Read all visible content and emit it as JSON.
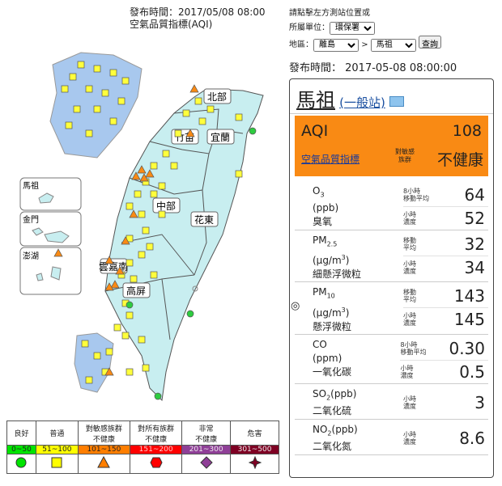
{
  "header": {
    "publish_time": "發布時間：2017/05/08 08:00",
    "title": "空氣品質指標(AQI)"
  },
  "controls": {
    "instruction": "請點擊左方測站位置或",
    "unit_label": "所屬單位：",
    "unit": "環保署",
    "region_label": "地區：",
    "region": "離島",
    "separator": ">",
    "station": "馬祖",
    "button": "查詢"
  },
  "map": {
    "regions": [
      "北部",
      "竹苗",
      "宜蘭",
      "中部",
      "花東",
      "雲嘉南",
      "高屏"
    ],
    "islands": [
      "馬祖",
      "金門",
      "澎湖"
    ]
  },
  "legend": {
    "levels": [
      {
        "label": [
          "良好"
        ],
        "range": "0~50"
      },
      {
        "label": [
          "普通"
        ],
        "range": "51~100"
      },
      {
        "label": [
          "對敏感族群",
          "不健康"
        ],
        "range": "101~150"
      },
      {
        "label": [
          "對所有族群",
          "不健康"
        ],
        "range": "151~200"
      },
      {
        "label": [
          "非常",
          "不健康"
        ],
        "range": "201~300"
      },
      {
        "label": [
          "危害"
        ],
        "range": "301~500"
      }
    ]
  },
  "panel": {
    "publish_time": "發布時間： 2017-05-08 08:00:00",
    "station": "馬祖",
    "station_type": "(一般站)",
    "aqi": {
      "label": "AQI",
      "value": 108,
      "link": "空氣品質指標",
      "group": [
        "對敏感",
        "族群"
      ],
      "status": "不健康"
    },
    "pollutants": [
      {
        "name": "O",
        "sub": "3",
        "unit": [
          "(ppb)"
        ],
        "cn": "臭氧",
        "measures": [
          {
            "label": [
              "8小時",
              "移動平均"
            ],
            "value": 64
          },
          {
            "label": [
              "小時",
              "濃度"
            ],
            "value": 52
          }
        ]
      },
      {
        "name": "PM",
        "sub": "2.5",
        "unit": [
          "(μg/m",
          "3",
          ")"
        ],
        "cn": "細懸浮微粒",
        "measures": [
          {
            "label": [
              "移動",
              "平均"
            ],
            "value": 32
          },
          {
            "label": [
              "小時",
              "濃度"
            ],
            "value": 34
          }
        ]
      },
      {
        "icon": "◎",
        "name": "PM",
        "sub": "10",
        "unit": [
          "(μg/m",
          "3",
          ")"
        ],
        "cn": "懸浮微粒",
        "measures": [
          {
            "label": [
              "移動",
              "平均"
            ],
            "value": 143
          },
          {
            "label": [
              "小時",
              "濃度"
            ],
            "value": 145
          }
        ]
      },
      {
        "name": "CO",
        "unit": [
          "(ppm)"
        ],
        "cn": "一氧化碳",
        "measures": [
          {
            "label": [
              "8小時",
              "移動平均"
            ],
            "value": "0.30"
          },
          {
            "label": [
              "小時",
              "濃度"
            ],
            "value": 0.5
          }
        ]
      },
      {
        "name": "SO",
        "sub": "2",
        "tail": "(ppb)",
        "cn": "二氧化硫",
        "measures": [
          {
            "label": [
              "小時",
              "濃度"
            ],
            "value": 3
          }
        ]
      },
      {
        "name": "NO",
        "sub": "2",
        "tail": "(ppb)",
        "cn": "二氧化氮",
        "measures": [
          {
            "label": [
              "小時",
              "濃度"
            ],
            "value": 8.6
          }
        ]
      }
    ]
  }
}
